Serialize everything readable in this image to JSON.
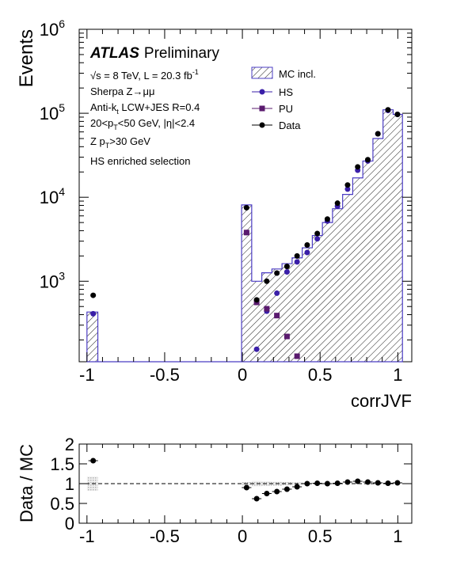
{
  "chart_data": [
    {
      "type": "histogram",
      "xlabel": "corrJVF",
      "ylabel": "Events",
      "xlim": [
        -1.05,
        1.09
      ],
      "ylim": [
        110,
        1000000
      ],
      "y_scale": "log",
      "x_ticks": [
        "-1",
        "-0.5",
        "0",
        "0.5",
        "1"
      ],
      "y_ticks": [
        {
          "base": "10",
          "exp": "3"
        },
        {
          "base": "10",
          "exp": "4"
        },
        {
          "base": "10",
          "exp": "5"
        },
        {
          "base": "10",
          "exp": "6"
        }
      ],
      "experiment": "ATLAS",
      "status": "Preliminary",
      "info_lines": [
        "√s = 8 TeV, L = 20.3 fb",
        "Sherpa Z→μμ",
        "Anti-k",
        "20<p",
        "Z p",
        "HS enriched selection"
      ],
      "info_lines_rich": {
        "lumi_sup": "-1",
        "antikt_sub": "t",
        "antikt_rest": " LCW+JES R=0.4",
        "pt_sub": "T",
        "pt_rest": "<50 GeV, |η|<2.4",
        "zpt_sub": "T",
        "zpt_rest": ">30 GeV"
      },
      "legend_position": "top-right",
      "legend": [
        {
          "name": "MC incl.",
          "style": "hatched-fill",
          "color": "#4b3cc4"
        },
        {
          "name": "HS",
          "style": "marker-circle",
          "color": "#3a1fa8"
        },
        {
          "name": "PU",
          "style": "marker-square",
          "color": "#5a1a6e"
        },
        {
          "name": "Data",
          "style": "marker-circle",
          "color": "#000000"
        }
      ],
      "mc_incl_bins": [
        {
          "x0": -1.0,
          "x1": -0.93,
          "y": 430
        },
        {
          "x0": -0.93,
          "x1": -0.005,
          "y": 110
        },
        {
          "x0": -0.005,
          "x1": 0.06,
          "y": 8100
        },
        {
          "x0": 0.06,
          "x1": 0.125,
          "y": 1000
        },
        {
          "x0": 0.125,
          "x1": 0.19,
          "y": 1260
        },
        {
          "x0": 0.19,
          "x1": 0.255,
          "y": 1400
        },
        {
          "x0": 0.255,
          "x1": 0.32,
          "y": 1620
        },
        {
          "x0": 0.32,
          "x1": 0.385,
          "y": 1900
        },
        {
          "x0": 0.385,
          "x1": 0.45,
          "y": 2500
        },
        {
          "x0": 0.45,
          "x1": 0.515,
          "y": 3500
        },
        {
          "x0": 0.515,
          "x1": 0.58,
          "y": 5000
        },
        {
          "x0": 0.58,
          "x1": 0.645,
          "y": 7300
        },
        {
          "x0": 0.645,
          "x1": 0.71,
          "y": 10800
        },
        {
          "x0": 0.71,
          "x1": 0.775,
          "y": 17000
        },
        {
          "x0": 0.775,
          "x1": 0.84,
          "y": 27000
        },
        {
          "x0": 0.84,
          "x1": 0.905,
          "y": 50000
        },
        {
          "x0": 0.905,
          "x1": 0.97,
          "y": 110000
        },
        {
          "x0": 0.97,
          "x1": 1.03,
          "y": 97000
        }
      ],
      "series": [
        {
          "name": "HS",
          "x": [
            -0.96,
            0.027,
            0.092,
            0.157,
            0.222,
            0.287,
            0.352,
            0.417,
            0.482,
            0.547,
            0.612,
            0.677,
            0.742,
            0.807,
            0.872,
            0.937,
            0.998
          ],
          "y": [
            410,
            3800,
            155,
            440,
            720,
            1290,
            1700,
            2200,
            3200,
            5200,
            7800,
            12500,
            21000,
            27000,
            57000,
            108000,
            97000
          ]
        },
        {
          "name": "PU",
          "x": [
            0.027,
            0.092,
            0.157,
            0.222,
            0.287,
            0.352
          ],
          "y": [
            3800,
            560,
            470,
            390,
            220,
            128
          ]
        },
        {
          "name": "Data",
          "x": [
            -0.96,
            0.027,
            0.092,
            0.157,
            0.222,
            0.287,
            0.352,
            0.417,
            0.482,
            0.547,
            0.612,
            0.677,
            0.742,
            0.807,
            0.872,
            0.937,
            0.998
          ],
          "y": [
            680,
            7500,
            600,
            1000,
            1250,
            1500,
            2000,
            2700,
            3700,
            5500,
            8500,
            14000,
            23000,
            28000,
            57000,
            110000,
            97000
          ]
        }
      ]
    },
    {
      "type": "scatter",
      "xlabel": "",
      "ylabel": "Data / MC",
      "xlim": [
        -1.05,
        1.09
      ],
      "ylim": [
        0,
        2
      ],
      "x_ticks": [
        "-1",
        "-0.5",
        "0",
        "0.5",
        "1"
      ],
      "y_ticks": [
        "0",
        "0.5",
        "1",
        "1.5",
        "2"
      ],
      "reference_line": 1,
      "uncertainty_band": [
        {
          "x0": -1.0,
          "x1": -0.93,
          "lo": 0.82,
          "hi": 1.18
        },
        {
          "x0": -0.005,
          "x1": 0.06,
          "lo": 0.96,
          "hi": 1.04
        },
        {
          "x0": 0.06,
          "x1": 0.125,
          "lo": 0.93,
          "hi": 1.07
        },
        {
          "x0": 0.125,
          "x1": 0.19,
          "lo": 0.94,
          "hi": 1.06
        },
        {
          "x0": 0.19,
          "x1": 0.255,
          "lo": 0.95,
          "hi": 1.05
        },
        {
          "x0": 0.255,
          "x1": 0.32,
          "lo": 0.96,
          "hi": 1.04
        },
        {
          "x0": 0.32,
          "x1": 0.385,
          "lo": 0.97,
          "hi": 1.03
        },
        {
          "x0": 0.385,
          "x1": 0.45,
          "lo": 0.98,
          "hi": 1.02
        }
      ],
      "series": [
        {
          "name": "Data / MC",
          "x": [
            -0.96,
            0.027,
            0.092,
            0.157,
            0.222,
            0.287,
            0.352,
            0.417,
            0.482,
            0.547,
            0.612,
            0.677,
            0.742,
            0.807,
            0.872,
            0.937,
            0.998
          ],
          "y": [
            1.58,
            0.9,
            0.62,
            0.75,
            0.8,
            0.86,
            0.92,
            1.0,
            1.01,
            1.0,
            1.01,
            1.04,
            1.06,
            1.04,
            1.02,
            1.01,
            1.02
          ]
        }
      ]
    }
  ]
}
